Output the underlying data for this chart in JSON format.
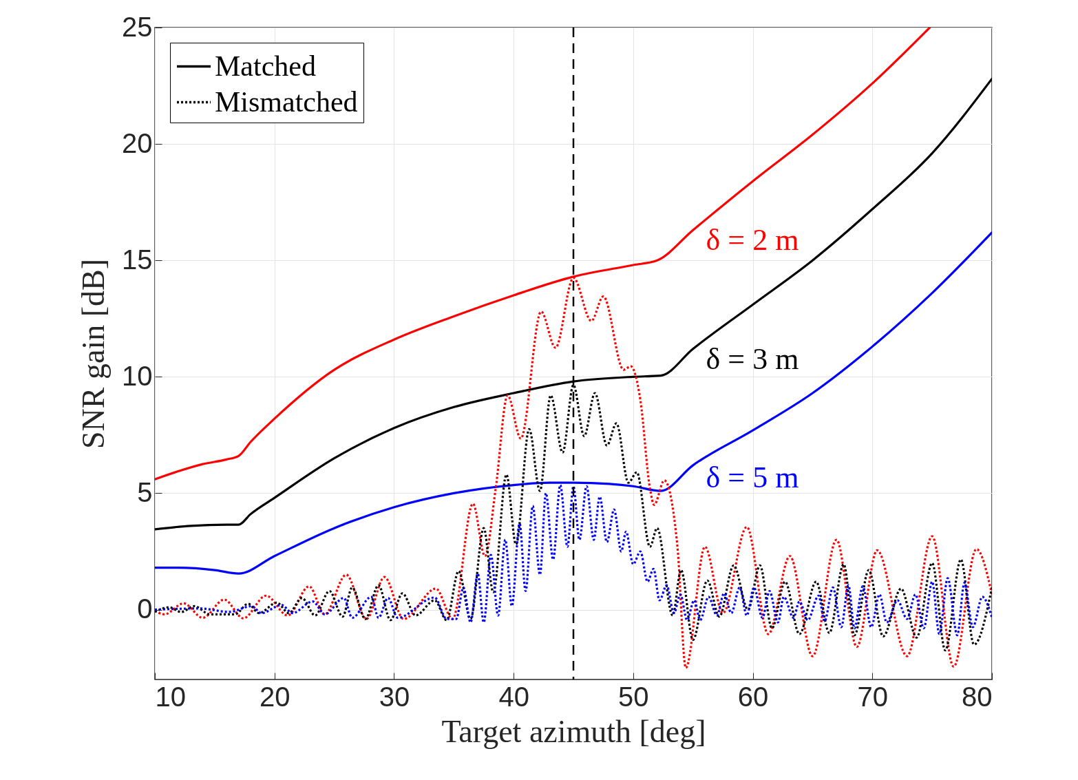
{
  "chart_data": {
    "type": "line",
    "xlabel": "Target azimuth [deg]",
    "ylabel": "SNR gain [dB]",
    "xlim": [
      10,
      80
    ],
    "ylim": [
      -3,
      25
    ],
    "xticks": [
      10,
      20,
      30,
      40,
      50,
      60,
      70,
      80
    ],
    "yticks": [
      0,
      5,
      10,
      15,
      20,
      25
    ],
    "grid": true,
    "legend": "top left",
    "marker": "none",
    "series": [
      {
        "color": "#ff0000",
        "line_style": "solid",
        "x": [
          10,
          12,
          14,
          16,
          17,
          18,
          20,
          25,
          30,
          35,
          40,
          45,
          50,
          52,
          55,
          60,
          65,
          70,
          74.8
        ],
        "values": [
          5.6,
          5.95,
          6.25,
          6.45,
          6.6,
          7.2,
          8.2,
          10.3,
          11.6,
          12.6,
          13.5,
          14.3,
          14.8,
          15.0,
          16.3,
          18.4,
          20.4,
          22.6,
          25
        ]
      },
      {
        "name": "Matched",
        "color": "#000000",
        "line_style": "solid",
        "x": [
          10,
          13,
          16,
          17,
          18,
          20,
          25,
          30,
          35,
          40,
          45,
          50,
          52.3,
          55,
          60,
          65,
          70,
          75,
          80
        ],
        "values": [
          3.45,
          3.6,
          3.65,
          3.65,
          4.1,
          4.8,
          6.5,
          7.8,
          8.7,
          9.3,
          9.8,
          10.0,
          10.05,
          11.2,
          13.1,
          15.0,
          17.2,
          19.6,
          22.8
        ]
      },
      {
        "color": "#0000ff",
        "line_style": "solid",
        "x": [
          10,
          12,
          15,
          17,
          20,
          25,
          30,
          35,
          40,
          43,
          45,
          48,
          50,
          52.3,
          55,
          60,
          65,
          70,
          75,
          80
        ],
        "values": [
          1.8,
          1.8,
          1.7,
          1.55,
          2.3,
          3.5,
          4.4,
          5.0,
          5.35,
          5.45,
          5.45,
          5.4,
          5.3,
          5.1,
          6.2,
          7.7,
          9.3,
          11.3,
          13.6,
          16.2
        ]
      },
      {
        "color": "#ff0000",
        "line_style": "dotted",
        "x": [
          10,
          10.8,
          12.4,
          14.0,
          15.8,
          17.4,
          19.3,
          21.1,
          22.9,
          24.2,
          26.0,
          27.7,
          29.2,
          30.8,
          33.5,
          34.9,
          36.6,
          37.6,
          38.5,
          39.5,
          40.6,
          42.3,
          43.5,
          45.0,
          46.5,
          47.5,
          49.2,
          49.8,
          50.6,
          51.4,
          51.75,
          52.6,
          53.7,
          54.4,
          56.0,
          57.5,
          59.5,
          61.3,
          63.1,
          65.0,
          67.0,
          68.7,
          70.4,
          72.9,
          75.0,
          76.8,
          78.7,
          80
        ],
        "values": [
          -0.05,
          -0.2,
          0.27,
          -0.35,
          0.43,
          -0.37,
          0.6,
          -0.25,
          1.0,
          -0.2,
          1.5,
          -0.4,
          1.4,
          -0.4,
          0.9,
          -0.4,
          4.55,
          2.3,
          5.2,
          9.2,
          7.35,
          12.8,
          11.25,
          14.25,
          12.4,
          13.45,
          10.3,
          10.45,
          9.0,
          5.2,
          4.5,
          5.55,
          2.7,
          -2.5,
          2.7,
          -0.15,
          3.55,
          -1.05,
          2.3,
          -2.0,
          3.0,
          -1.6,
          2.55,
          -2.0,
          3.15,
          -2.45,
          2.6,
          0.65
        ]
      },
      {
        "name": "Mismatched",
        "color": "#000000",
        "line_style": "dotted",
        "x": [
          10,
          11.2,
          12.2,
          13.3,
          14.6,
          16.7,
          17.8,
          18.7,
          20.2,
          21.2,
          22.3,
          23.4,
          24.6,
          25.7,
          26.5,
          27.6,
          28.7,
          29.7,
          30.7,
          31.8,
          33.4,
          34.4,
          35.4,
          36.4,
          37.5,
          38.3,
          39.4,
          40.2,
          41.3,
          42.2,
          43.1,
          44.1,
          45.0,
          45.9,
          46.8,
          47.8,
          48.6,
          49.6,
          50.3,
          51.4,
          52.0,
          53.3,
          54.0,
          55.0,
          56.2,
          57.2,
          58.4,
          59.6,
          60.6,
          61.6,
          62.7,
          63.9,
          65.3,
          66.4,
          67.6,
          68.5,
          69.7,
          70.9,
          72.4,
          73.7,
          75.0,
          76.1,
          77.4,
          78.5,
          80
        ],
        "values": [
          -0.1,
          0.1,
          -0.1,
          0.15,
          -0.2,
          -0.2,
          0.25,
          -0.15,
          0.3,
          -0.15,
          0.5,
          -0.25,
          0.8,
          -0.3,
          0.95,
          -0.4,
          1.05,
          -0.45,
          0.7,
          -0.25,
          0.4,
          -0.45,
          1.65,
          -0.4,
          3.5,
          0.75,
          5.8,
          2.8,
          7.75,
          5.1,
          9.2,
          6.75,
          9.65,
          7.45,
          9.3,
          7.05,
          8.0,
          5.45,
          5.9,
          2.7,
          3.5,
          -0.25,
          1.7,
          -1.3,
          1.25,
          -0.3,
          1.9,
          0,
          1.9,
          -0.8,
          1.2,
          -1.05,
          1.2,
          -1.0,
          1.95,
          -1.1,
          1.7,
          -1.15,
          0.9,
          -1.2,
          2.0,
          -1.75,
          2.15,
          -1.5,
          0.95
        ]
      },
      {
        "color": "#0000ff",
        "line_style": "dotted",
        "x": [
          10,
          13.8,
          16.2,
          18.1,
          18.9,
          20.6,
          21.5,
          23.2,
          24.2,
          25.8,
          26.5,
          28.1,
          28.7,
          29.5,
          30.3,
          33.4,
          34.4,
          35.2,
          35.8,
          36.4,
          37.0,
          37.5,
          38.1,
          38.7,
          39.3,
          39.85,
          40.5,
          41.0,
          41.6,
          42.2,
          42.7,
          43.3,
          43.9,
          44.5,
          45.0,
          45.5,
          46.1,
          46.7,
          47.2,
          47.8,
          48.4,
          49.0,
          49.4,
          50.0,
          50.6,
          51.2,
          51.7,
          52.2,
          52.8,
          53.4,
          53.95,
          54.5,
          55.1,
          55.6,
          56.3,
          57.0,
          57.6,
          58.2,
          58.9,
          59.5,
          60.1,
          60.8,
          61.4,
          62.1,
          62.6,
          63.4,
          63.9,
          64.6,
          65.5,
          66.0,
          66.7,
          67.4,
          68.0,
          68.5,
          69.2,
          69.9,
          70.6,
          71.2,
          72.1,
          72.9,
          73.6,
          74.3,
          75.0,
          75.6,
          76.3,
          77.1,
          77.7,
          78.4,
          79.2,
          80
        ],
        "values": [
          0,
          0.05,
          -0.1,
          0.15,
          -0.15,
          0.2,
          -0.15,
          0.35,
          -0.2,
          0.5,
          -0.35,
          0.55,
          -0.35,
          0.5,
          -0.35,
          0.52,
          -0.4,
          -0.4,
          0.95,
          -0.55,
          1.55,
          -0.55,
          2.35,
          -0.25,
          3.0,
          0.15,
          3.7,
          0.8,
          4.45,
          1.5,
          5.0,
          2.15,
          5.35,
          2.7,
          5.3,
          3.0,
          5.3,
          3.0,
          4.85,
          2.9,
          4.3,
          2.5,
          3.35,
          1.95,
          2.5,
          1.2,
          1.75,
          0.4,
          1.05,
          -0.15,
          0.65,
          -0.45,
          0.4,
          -0.45,
          0.55,
          -0.25,
          0.7,
          -0.15,
          0.95,
          -0.25,
          0.95,
          -0.35,
          0.8,
          -0.55,
          0.55,
          -0.35,
          0.35,
          -0.45,
          0.6,
          -0.5,
          0.95,
          -0.75,
          1.05,
          -0.8,
          1.0,
          -0.75,
          0.65,
          -0.55,
          0.4,
          -0.4,
          0.65,
          -0.8,
          1.2,
          -1.05,
          1.35,
          -1.1,
          1.15,
          -0.75,
          0.55,
          -0.35
        ]
      }
    ],
    "ref_lines": [
      {
        "axis": "x",
        "value": 45,
        "color": "#000000",
        "line_style": "dashed"
      }
    ],
    "annotations": [
      "δ = 2 m",
      "δ = 3 m",
      "δ = 5 m"
    ]
  }
}
